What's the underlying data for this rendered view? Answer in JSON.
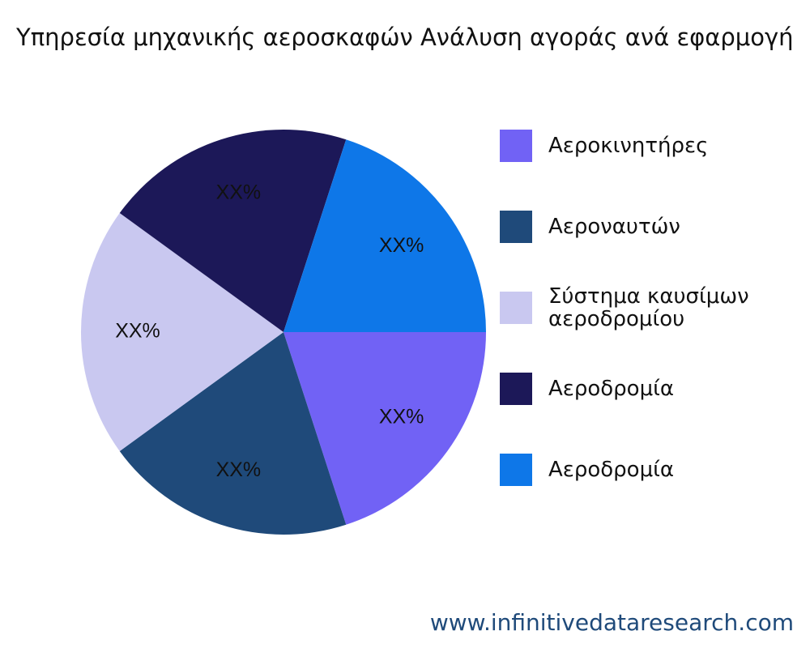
{
  "chart_data": {
    "type": "pie",
    "title": "Υπηρεσία μηχανικής αεροσκαφών Ανάλυση αγοράς ανά εφαρμογή",
    "categories": [
      "Αεροκινητήρες",
      "Αεροναυτών",
      "Σύστημα καυσίμων αεροδρομίου",
      "Αεροδρομία",
      "Αεροδρομία"
    ],
    "values": [
      20,
      20,
      20,
      20,
      20
    ],
    "value_labels": [
      "XX%",
      "XX%",
      "XX%",
      "XX%",
      "XX%"
    ],
    "colors": [
      "#7162f5",
      "#1f4a7a",
      "#c9c8f0",
      "#1c1858",
      "#0e77e8"
    ],
    "legend": "right",
    "source": "www.infinitivedataresearch.com"
  }
}
